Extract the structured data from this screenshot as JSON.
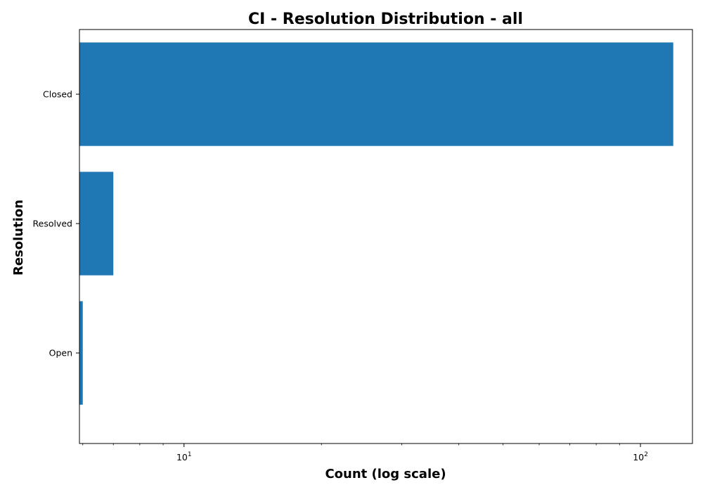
{
  "chart_data": {
    "type": "bar",
    "orientation": "horizontal",
    "title": "CI - Resolution Distribution - all",
    "xlabel": "Count (log scale)",
    "ylabel": "Resolution",
    "x_scale": "log",
    "xlim": [
      5.9,
      130
    ],
    "categories": [
      "Closed",
      "Resolved",
      "Open"
    ],
    "values": [
      118,
      7,
      6
    ],
    "x_major_ticks": [
      10,
      100
    ],
    "x_tick_labels": [
      {
        "base": "10",
        "exp": "1"
      },
      {
        "base": "10",
        "exp": "2"
      }
    ],
    "x_minor_ticks": [
      6,
      7,
      8,
      9,
      20,
      30,
      40,
      50,
      60,
      70,
      80,
      90
    ],
    "bar_color": "#1f77b4",
    "grid": false,
    "legend": "none"
  }
}
